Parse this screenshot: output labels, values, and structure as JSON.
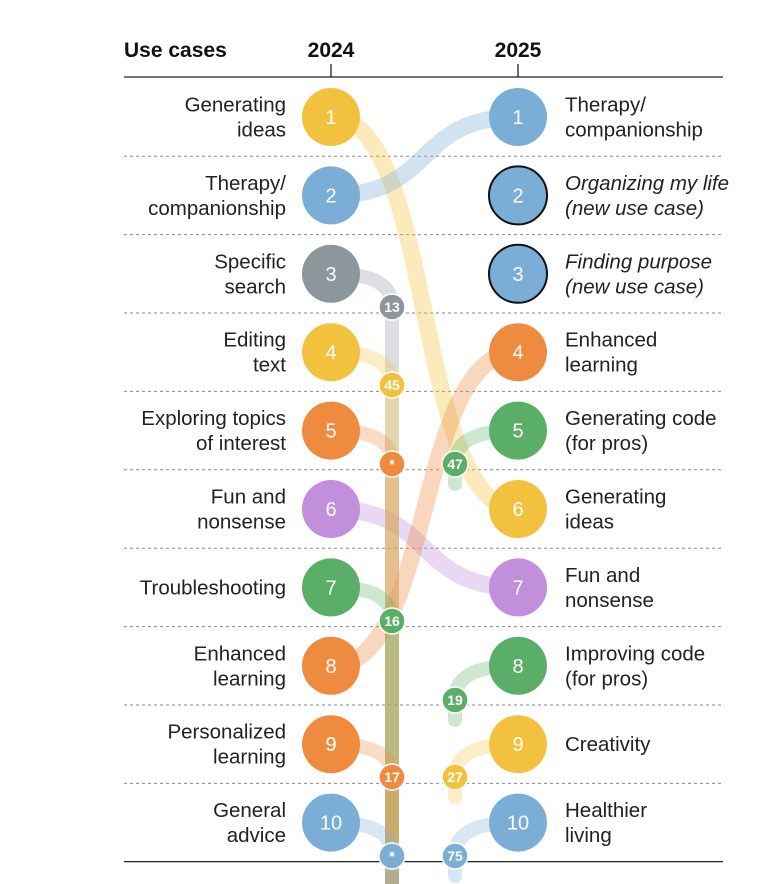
{
  "chart_data": {
    "type": "table",
    "headers": {
      "use_cases": "Use cases",
      "year_left": "2024",
      "year_right": "2025"
    },
    "colors": {
      "yellow": "#F2C23E",
      "blue": "#7AAED6",
      "gray": "#8C969D",
      "orange": "#EE8B3E",
      "purple": "#C18FDC",
      "green": "#5BAE67",
      "outline": "#111111"
    },
    "rows_2024": [
      {
        "rank": "1",
        "label": [
          "Generating",
          "ideas"
        ],
        "color": "yellow"
      },
      {
        "rank": "2",
        "label": [
          "Therapy/",
          "companionship"
        ],
        "color": "blue"
      },
      {
        "rank": "3",
        "label": [
          "Specific",
          "search"
        ],
        "color": "gray"
      },
      {
        "rank": "4",
        "label": [
          "Editing",
          "text"
        ],
        "color": "yellow"
      },
      {
        "rank": "5",
        "label": [
          "Exploring topics",
          "of interest"
        ],
        "color": "orange"
      },
      {
        "rank": "6",
        "label": [
          "Fun and",
          "nonsense"
        ],
        "color": "purple"
      },
      {
        "rank": "7",
        "label": [
          "Troubleshooting"
        ],
        "color": "green"
      },
      {
        "rank": "8",
        "label": [
          "Enhanced",
          "learning"
        ],
        "color": "orange"
      },
      {
        "rank": "9",
        "label": [
          "Personalized",
          "learning"
        ],
        "color": "orange"
      },
      {
        "rank": "10",
        "label": [
          "General",
          "advice"
        ],
        "color": "blue"
      }
    ],
    "rows_2025": [
      {
        "rank": "1",
        "label": [
          "Therapy/",
          "companionship"
        ],
        "color": "blue",
        "is_new": false
      },
      {
        "rank": "2",
        "label": [
          "Organizing my life",
          "(new use case)"
        ],
        "color": "blue",
        "is_new": true
      },
      {
        "rank": "3",
        "label": [
          "Finding purpose",
          "(new use case)"
        ],
        "color": "blue",
        "is_new": true
      },
      {
        "rank": "4",
        "label": [
          "Enhanced",
          "learning"
        ],
        "color": "orange",
        "is_new": false
      },
      {
        "rank": "5",
        "label": [
          "Generating code",
          "(for pros)"
        ],
        "color": "green",
        "is_new": false
      },
      {
        "rank": "6",
        "label": [
          "Generating",
          "ideas"
        ],
        "color": "yellow",
        "is_new": false
      },
      {
        "rank": "7",
        "label": [
          "Fun and",
          "nonsense"
        ],
        "color": "purple",
        "is_new": false
      },
      {
        "rank": "8",
        "label": [
          "Improving code",
          "(for pros)"
        ],
        "color": "green",
        "is_new": false
      },
      {
        "rank": "9",
        "label": [
          "Creativity"
        ],
        "color": "yellow",
        "is_new": false
      },
      {
        "rank": "10",
        "label": [
          "Healthier",
          "living"
        ],
        "color": "blue",
        "is_new": false
      }
    ],
    "flows": [
      {
        "from_2024": 1,
        "to_2025": 6,
        "color": "yellow"
      },
      {
        "from_2024": 2,
        "to_2025": 1,
        "color": "blue"
      },
      {
        "from_2024": 6,
        "to_2025": 7,
        "color": "purple"
      },
      {
        "from_2024": 8,
        "to_2025": 4,
        "color": "orange"
      }
    ],
    "dropped_from_2024": [
      {
        "rank_2024": 3,
        "new_rank": "13",
        "color": "gray"
      },
      {
        "rank_2024": 4,
        "new_rank": "45",
        "color": "yellow"
      },
      {
        "rank_2024": 5,
        "new_rank": "*",
        "color": "orange"
      },
      {
        "rank_2024": 7,
        "new_rank": "16",
        "color": "green"
      },
      {
        "rank_2024": 9,
        "new_rank": "17",
        "color": "orange"
      },
      {
        "rank_2024": 10,
        "new_rank": "*",
        "color": "blue"
      }
    ],
    "risen_into_2025": [
      {
        "rank_2025": 5,
        "prev_rank": "47",
        "color": "green"
      },
      {
        "rank_2025": 8,
        "prev_rank": "19",
        "color": "green"
      },
      {
        "rank_2025": 9,
        "prev_rank": "27",
        "color": "yellow"
      },
      {
        "rank_2025": 10,
        "prev_rank": "75",
        "color": "blue"
      }
    ]
  }
}
